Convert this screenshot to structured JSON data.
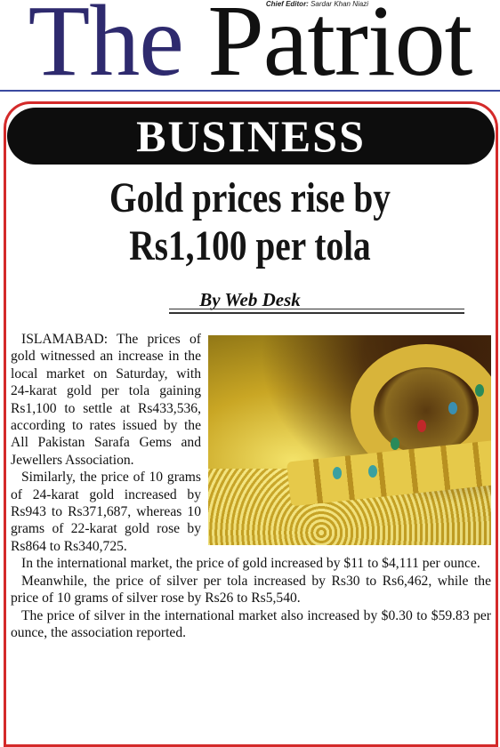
{
  "masthead": {
    "editor_label": "Chief Editor:",
    "editor_name": "Sardar Khan Niazi",
    "title_words": [
      "The",
      "Patriot"
    ]
  },
  "section": "BUSINESS",
  "article": {
    "headline_lines": [
      "Gold prices rise by",
      "Rs1,100 per tola"
    ],
    "byline": "By Web Desk",
    "paragraphs": [
      "ISLAMABAD: The prices of gold witnessed an increase in the local market on Saturday, with 24-karat gold per tola gaining Rs1,100 to settle at Rs433,536, according to rates issued by the All Pakistan Sarafa Gems and Jewellers Association.",
      "Similarly, the price of 10 grams of 24-karat gold increased by Rs943 to Rs371,687, whereas 10 grams of 22-karat gold rose by Rs864 to Rs340,725.",
      "In the international market, the price of gold increased by $11 to $4,111 per ounce.",
      "Meanwhile, the price of silver per tola increased by Rs30 to Rs6,462, while the price of 10 grams of silver rose by Rs26 to Rs5,540.",
      "The price of silver in the international market also increased by $0.30 to $59.83 per ounce, the association reported."
    ]
  }
}
